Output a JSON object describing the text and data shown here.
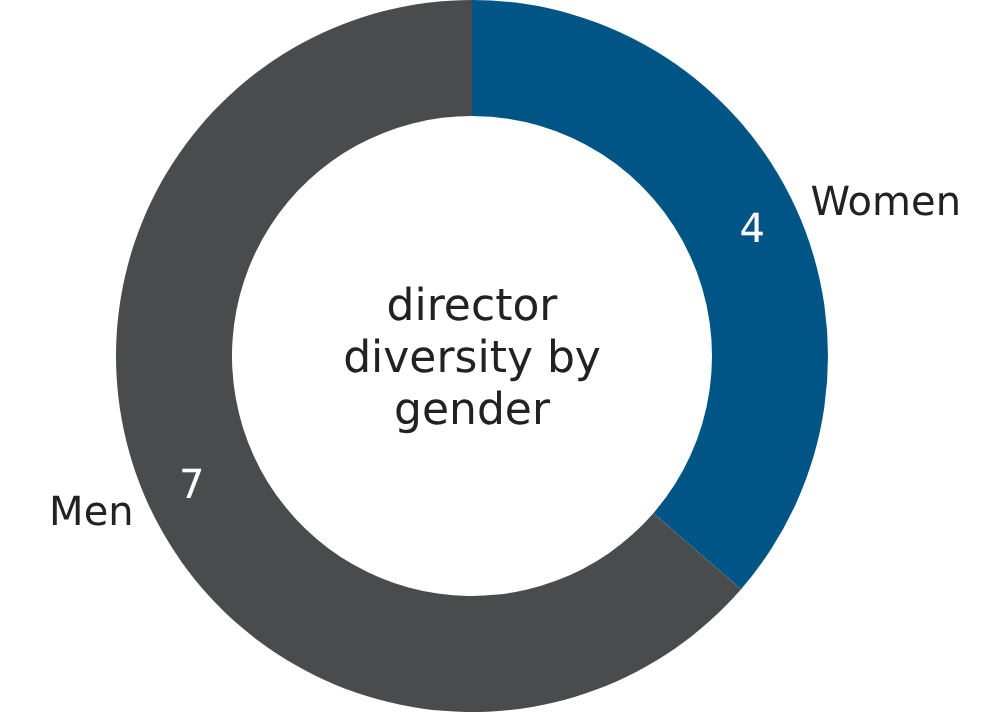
{
  "chart_data": {
    "type": "donut",
    "title": "director diversity by gender",
    "categories": [
      "Women",
      "Men"
    ],
    "values": [
      4,
      7
    ],
    "colors": [
      "#005587",
      "#4a4b4d"
    ],
    "data_labels": true
  }
}
